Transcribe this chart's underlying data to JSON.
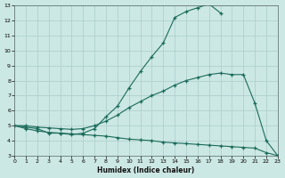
{
  "xlabel": "Humidex (Indice chaleur)",
  "bg_color": "#cce8e4",
  "line_color": "#1a6b5a",
  "grid_color": "#aaccca",
  "curve1_x": [
    0,
    1,
    2,
    3,
    4,
    5,
    6,
    7,
    8,
    9,
    10,
    11,
    12,
    13,
    14,
    15,
    16,
    17,
    18
  ],
  "curve1_y": [
    5.0,
    4.9,
    4.8,
    4.5,
    4.5,
    4.4,
    4.5,
    4.8,
    5.6,
    6.3,
    7.5,
    8.6,
    9.6,
    10.5,
    12.2,
    12.6,
    12.85,
    13.1,
    12.5
  ],
  "curve2_x": [
    0,
    1,
    2,
    3,
    4,
    5,
    6,
    7,
    8,
    9,
    10,
    11,
    12,
    13,
    14,
    15,
    16,
    17,
    18,
    19,
    20,
    21,
    22,
    23
  ],
  "curve2_y": [
    5.0,
    5.0,
    4.9,
    4.85,
    4.8,
    4.75,
    4.8,
    5.0,
    5.3,
    5.7,
    6.2,
    6.6,
    7.0,
    7.3,
    7.7,
    8.0,
    8.2,
    8.4,
    8.5,
    8.4,
    8.4,
    6.5,
    4.0,
    3.0
  ],
  "curve3_x": [
    0,
    1,
    2,
    3,
    4,
    5,
    6,
    7,
    8,
    9,
    10,
    11,
    12,
    13,
    14,
    15,
    16,
    17,
    18,
    19,
    20,
    21,
    22,
    23
  ],
  "curve3_y": [
    5.0,
    4.8,
    4.65,
    4.55,
    4.5,
    4.45,
    4.4,
    4.35,
    4.3,
    4.2,
    4.1,
    4.05,
    4.0,
    3.9,
    3.85,
    3.8,
    3.75,
    3.7,
    3.65,
    3.6,
    3.55,
    3.5,
    3.2,
    3.0
  ],
  "ylim": [
    3,
    13
  ],
  "xlim": [
    0,
    23
  ],
  "yticks": [
    3,
    4,
    5,
    6,
    7,
    8,
    9,
    10,
    11,
    12,
    13
  ],
  "xticks": [
    0,
    1,
    2,
    3,
    4,
    5,
    6,
    7,
    8,
    9,
    10,
    11,
    12,
    13,
    14,
    15,
    16,
    17,
    18,
    19,
    20,
    21,
    22,
    23
  ]
}
